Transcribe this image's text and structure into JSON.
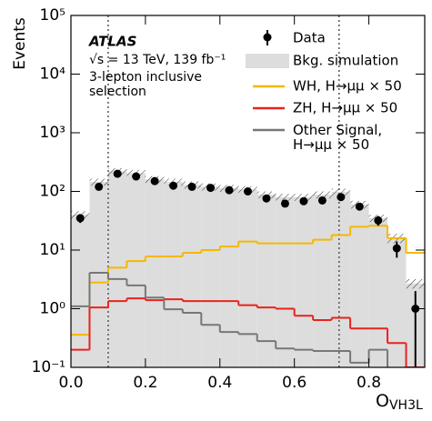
{
  "chart_data": {
    "type": "histogram",
    "ylabel": "Events",
    "xlabel": "O",
    "xlabel_sub": "VH3L",
    "annotations": [
      "ATLAS",
      "√s = 13 TeV, 139 fb⁻¹",
      "3-lepton inclusive",
      "selection"
    ],
    "log_y": true,
    "xlim": [
      0,
      0.95
    ],
    "ylim": [
      0.1,
      100000
    ],
    "xticks": [
      {
        "value": 0,
        "label": "0.0"
      },
      {
        "value": 0.2,
        "label": "0.2"
      },
      {
        "value": 0.4,
        "label": "0.4"
      },
      {
        "value": 0.6,
        "label": "0.6"
      },
      {
        "value": 0.8,
        "label": "0.8"
      }
    ],
    "yticks": [
      {
        "value": 0.1,
        "label": "10⁻¹"
      },
      {
        "value": 1,
        "label": "10⁰"
      },
      {
        "value": 10,
        "label": "10¹"
      },
      {
        "value": 100,
        "label": "10²"
      },
      {
        "value": 1000,
        "label": "10³"
      },
      {
        "value": 10000,
        "label": "10⁴"
      },
      {
        "value": 100000,
        "label": "10⁵"
      }
    ],
    "vlines": [
      0.1,
      0.72
    ],
    "bins": [
      0,
      0.05,
      0.1,
      0.15,
      0.2,
      0.25,
      0.3,
      0.35,
      0.4,
      0.45,
      0.5,
      0.55,
      0.6,
      0.65,
      0.7,
      0.75,
      0.8,
      0.85,
      0.9,
      0.95
    ],
    "data": {
      "name": "Data",
      "color": "#000000",
      "values": [
        35,
        120,
        200,
        180,
        150,
        125,
        120,
        115,
        105,
        100,
        76,
        62,
        68,
        70,
        80,
        55,
        32,
        10.7,
        1
      ],
      "errors": [
        6,
        11,
        14,
        13,
        12,
        11,
        11,
        11,
        10,
        10,
        9,
        8,
        8,
        8,
        9,
        7,
        6,
        3.3,
        1
      ]
    },
    "series": [
      {
        "name": "Bkg. simulation",
        "color": "#dddddd",
        "style": "fill",
        "values": [
          40,
          145,
          220,
          205,
          160,
          145,
          130,
          120,
          113,
          108,
          88,
          80,
          80,
          88,
          98,
          60,
          35,
          16,
          2.7
        ],
        "errors": [
          6,
          20,
          30,
          28,
          22,
          20,
          18,
          17,
          16,
          15,
          12,
          11,
          11,
          12,
          14,
          9,
          5,
          3,
          0.5
        ]
      },
      {
        "name": "WH, H→μμ × 50",
        "color": "#f5b800",
        "style": "step",
        "values": [
          0.36,
          2.8,
          5,
          6.5,
          7.8,
          7.8,
          9,
          10,
          11.5,
          14,
          13,
          13,
          13,
          15,
          18,
          25,
          26,
          16,
          9
        ]
      },
      {
        "name": "ZH, H→μμ × 50",
        "color": "#e8231e",
        "style": "step",
        "values": [
          0.2,
          1.05,
          1.35,
          1.5,
          1.4,
          1.45,
          1.35,
          1.35,
          1.35,
          1.15,
          1.05,
          1.0,
          0.76,
          0.64,
          0.7,
          0.46,
          0.46,
          0.26,
          0.1
        ]
      },
      {
        "name": "Other Signal,\nH→μμ × 50",
        "color": "#777777",
        "style": "step",
        "values": [
          1.1,
          4.1,
          3.2,
          2.5,
          1.55,
          0.98,
          0.85,
          0.53,
          0.4,
          0.37,
          0.28,
          0.21,
          0.2,
          0.19,
          0.19,
          0.12,
          0.2,
          null,
          null
        ]
      }
    ]
  }
}
